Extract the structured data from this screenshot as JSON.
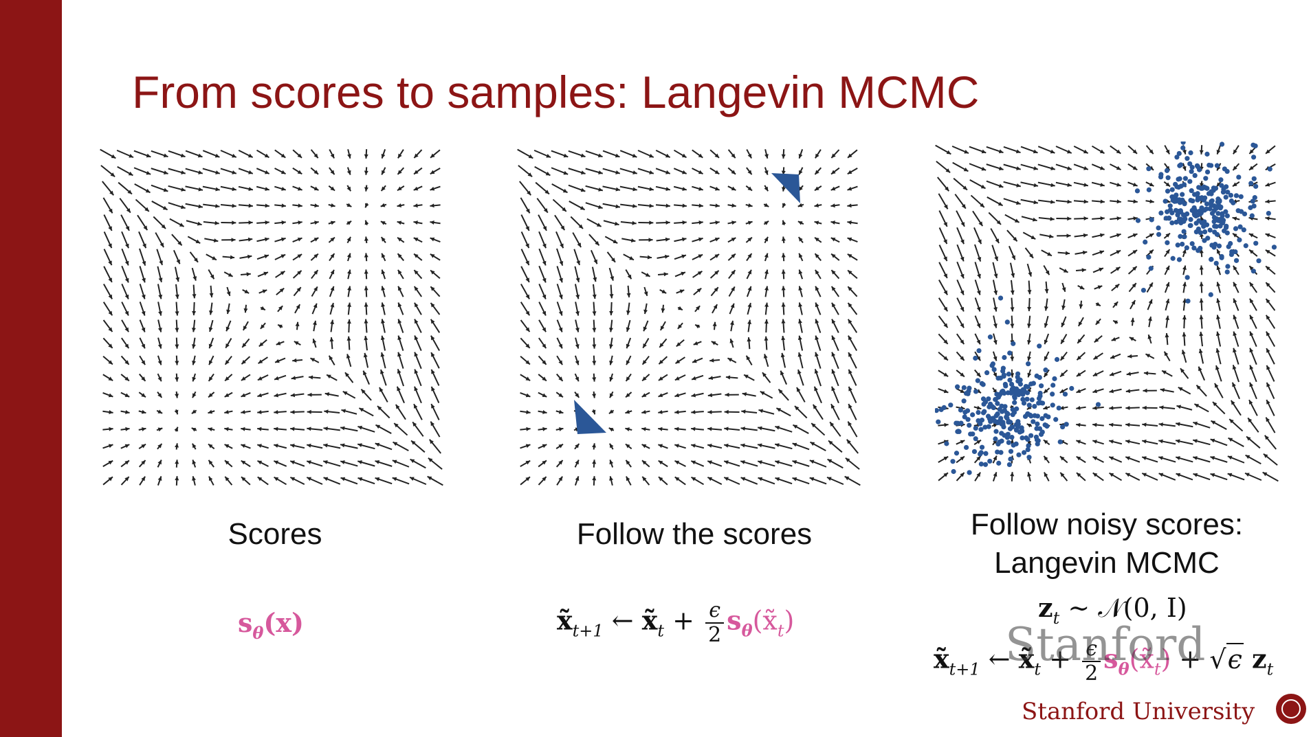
{
  "slide": {
    "title": "From scores to samples: Langevin MCMC",
    "accent_color": "#8c1515",
    "point_color": "#2b5797",
    "highlight_color": "#d6589c"
  },
  "panels": [
    {
      "caption_lines": [
        "Scores"
      ],
      "formula": {
        "score": "s",
        "score_sub": "θ",
        "arg": "(x)"
      },
      "points": "none"
    },
    {
      "caption_lines": [
        "Follow the scores"
      ],
      "formula": {
        "lhs": "x̃",
        "lhs_sub": "t+1",
        "arrow": "←",
        "rhs": "x̃",
        "rhs_sub": "t",
        "plus": "+",
        "frac_num": "ϵ",
        "frac_den": "2",
        "score": "s",
        "score_sub": "θ",
        "arg_open": "(x̃",
        "arg_sub": "t",
        "arg_close": ")"
      },
      "points": "collapsed-modes"
    },
    {
      "caption_lines": [
        "Follow noisy scores:",
        "Langevin MCMC"
      ],
      "noise_formula": {
        "z": "z",
        "z_sub": "t",
        "sim": "∼",
        "dist": "𝒩(0, I)"
      },
      "formula": {
        "lhs": "x̃",
        "lhs_sub": "t+1",
        "arrow": "←",
        "rhs": "x̃",
        "rhs_sub": "t",
        "plus": "+",
        "frac_num": "ϵ",
        "frac_den": "2",
        "score": "s",
        "score_sub": "θ",
        "arg_open": "(x̃",
        "arg_sub": "t",
        "arg_close": ")",
        "plus2": "+",
        "sqrt_arg": "ϵ",
        "z": "z",
        "z_sub": "t"
      },
      "points": "spread-modes"
    }
  ],
  "branding": {
    "watermark": "Stanford",
    "university": "Stanford University"
  }
}
